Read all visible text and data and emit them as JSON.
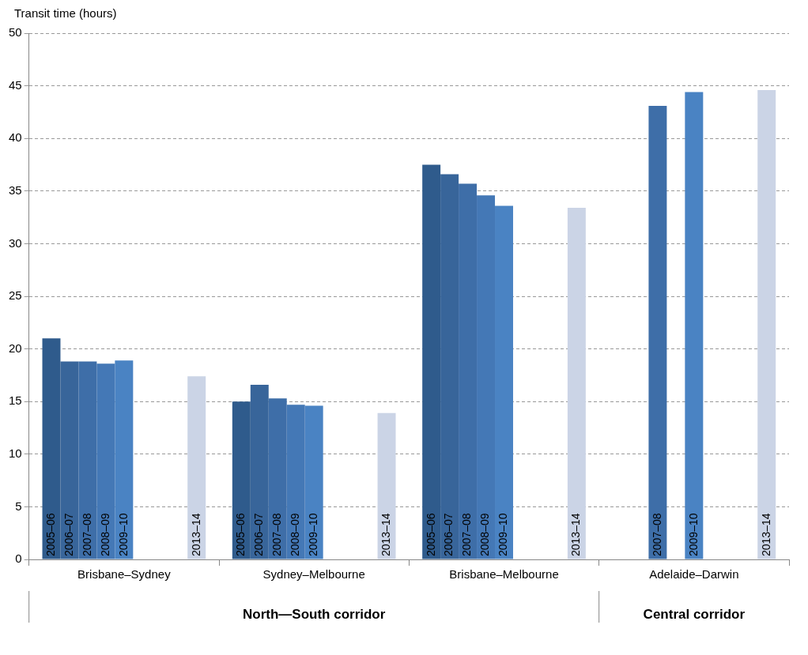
{
  "chart_data": {
    "type": "bar",
    "ylabel": "Transit time (hours)",
    "categories": [
      "Brisbane–Sydney",
      "Sydney–Melbourne",
      "Brisbane–Melbourne",
      "Adelaide–Darwin"
    ],
    "series": [
      {
        "name": "2005–06",
        "color": "#2f5b8c",
        "values": [
          21.0,
          15.0,
          37.5,
          null
        ]
      },
      {
        "name": "2006–07",
        "color": "#38659a",
        "values": [
          18.8,
          16.6,
          36.6,
          null
        ]
      },
      {
        "name": "2007–08",
        "color": "#3e6ea8",
        "values": [
          18.8,
          15.3,
          35.7,
          43.1
        ]
      },
      {
        "name": "2008–09",
        "color": "#4478b6",
        "values": [
          18.6,
          14.7,
          34.6,
          null
        ]
      },
      {
        "name": "2009–10",
        "color": "#4a83c3",
        "values": [
          18.9,
          14.6,
          33.6,
          44.4
        ]
      },
      {
        "values": [
          null,
          null,
          null,
          null
        ]
      },
      {
        "values": [
          null,
          null,
          null,
          null
        ]
      },
      {
        "values": [
          null,
          null,
          null,
          null
        ]
      },
      {
        "name": "2013–14",
        "color": "#cbd4e6",
        "values": [
          17.4,
          13.9,
          33.4,
          44.6
        ]
      }
    ],
    "ylim": [
      0,
      50
    ],
    "yticks": [
      0,
      5,
      10,
      15,
      20,
      25,
      30,
      35,
      40,
      45,
      50
    ],
    "grid": "y",
    "legend": false,
    "annotations": [
      "North—South corridor",
      "Central corridor"
    ]
  }
}
